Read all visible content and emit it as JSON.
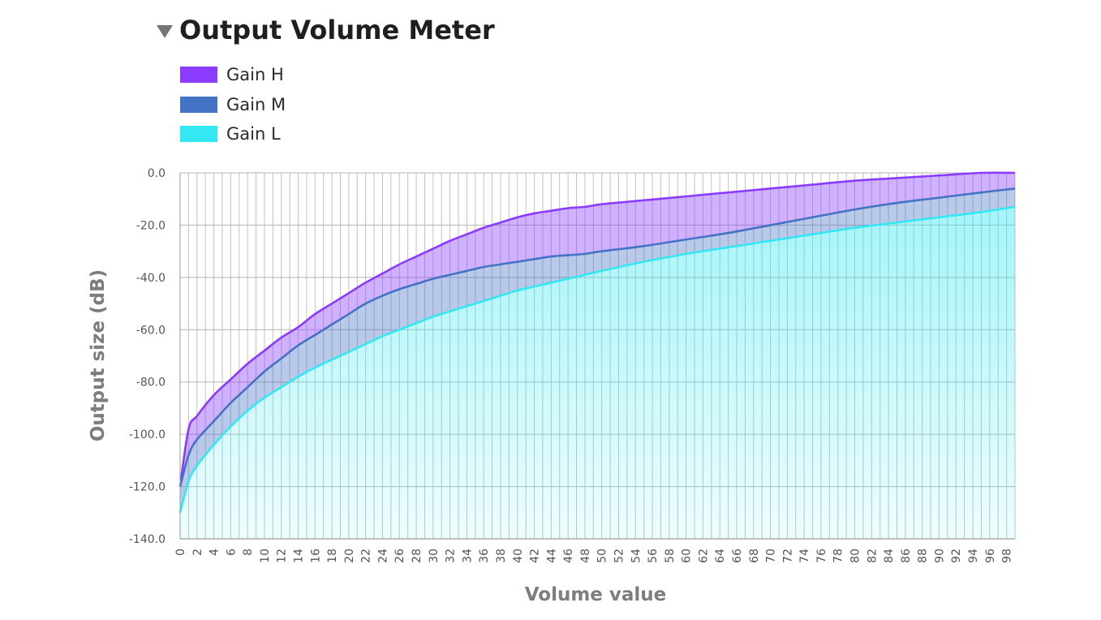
{
  "header": {
    "title": "Output Volume Meter",
    "toggle_icon": "triangle-down-icon"
  },
  "colors": {
    "gain_h": "#8a3bff",
    "gain_m": "#4472c4",
    "gain_l": "#33e8f2",
    "grid": "#c2c2c2"
  },
  "chart_data": {
    "type": "area",
    "xlabel": "Volume value",
    "ylabel": "Output size (dB)",
    "xlim": [
      0,
      99
    ],
    "ylim": [
      -140,
      0
    ],
    "xticks": [
      0,
      2,
      4,
      6,
      8,
      10,
      12,
      14,
      16,
      18,
      20,
      22,
      24,
      26,
      28,
      30,
      32,
      34,
      36,
      38,
      40,
      42,
      44,
      46,
      48,
      50,
      52,
      54,
      56,
      58,
      60,
      62,
      64,
      66,
      68,
      70,
      72,
      74,
      76,
      78,
      80,
      82,
      84,
      86,
      88,
      90,
      92,
      94,
      96,
      98
    ],
    "yticks": [
      "0.0",
      "-20.0",
      "-40.0",
      "-60.0",
      "-80.0",
      "-100.0",
      "-120.0",
      "-140.0"
    ],
    "grid": true,
    "legend_position": "top-left",
    "series": [
      {
        "name": "Gain H",
        "x": [
          0,
          1,
          2,
          4,
          6,
          8,
          10,
          12,
          14,
          16,
          18,
          20,
          22,
          24,
          26,
          28,
          30,
          32,
          34,
          36,
          38,
          40,
          42,
          44,
          46,
          48,
          50,
          55,
          60,
          65,
          70,
          75,
          80,
          85,
          90,
          95,
          99
        ],
        "values": [
          -120,
          -98,
          -93,
          -85,
          -79,
          -73,
          -68,
          -63,
          -59,
          -54,
          -50,
          -46,
          -42,
          -38.5,
          -35,
          -32,
          -29,
          -26,
          -23.5,
          -21,
          -19,
          -17,
          -15.5,
          -14.5,
          -13.5,
          -13,
          -12,
          -10.5,
          -9,
          -7.5,
          -6,
          -4.5,
          -3,
          -2,
          -1,
          0,
          0
        ]
      },
      {
        "name": "Gain M",
        "x": [
          0,
          1,
          2,
          4,
          6,
          8,
          10,
          12,
          14,
          16,
          18,
          20,
          22,
          24,
          26,
          28,
          30,
          32,
          34,
          36,
          38,
          40,
          42,
          44,
          46,
          48,
          50,
          55,
          60,
          65,
          70,
          75,
          80,
          85,
          90,
          95,
          99
        ],
        "values": [
          -120,
          -108,
          -102,
          -95,
          -88,
          -82,
          -76,
          -71,
          -66,
          -62,
          -58,
          -54,
          -50,
          -47,
          -44.5,
          -42.5,
          -40.5,
          -39,
          -37.5,
          -36,
          -35,
          -34,
          -33,
          -32,
          -31.5,
          -31,
          -30,
          -28,
          -25.5,
          -23,
          -20,
          -17,
          -14,
          -11.5,
          -9.5,
          -7.5,
          -6
        ]
      },
      {
        "name": "Gain L",
        "x": [
          0,
          1,
          2,
          4,
          6,
          8,
          10,
          12,
          14,
          16,
          18,
          20,
          22,
          24,
          26,
          28,
          30,
          32,
          34,
          36,
          38,
          40,
          42,
          44,
          46,
          48,
          50,
          55,
          60,
          65,
          70,
          75,
          80,
          85,
          90,
          95,
          99
        ],
        "values": [
          -130,
          -118,
          -112,
          -104,
          -97,
          -91,
          -86,
          -82,
          -78,
          -74.5,
          -71.5,
          -68.5,
          -65.5,
          -62.5,
          -60,
          -57.5,
          -55,
          -53,
          -51,
          -49,
          -47,
          -45,
          -43.5,
          -42,
          -40.5,
          -39,
          -37.5,
          -34,
          -31,
          -28.5,
          -26,
          -23.5,
          -21,
          -19,
          -17,
          -15,
          -13
        ]
      }
    ]
  }
}
